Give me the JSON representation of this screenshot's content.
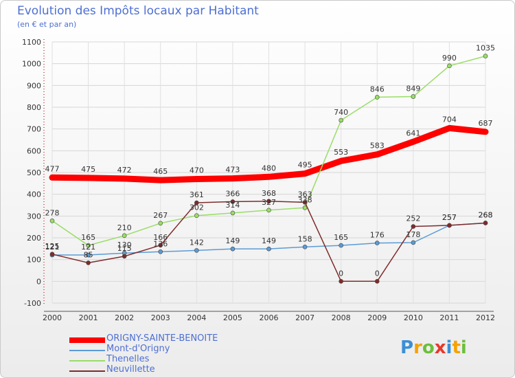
{
  "title": "Evolution des Impôts locaux par Habitant",
  "subtitle": "(en € et par an)",
  "chart_data": {
    "type": "line",
    "title": "Evolution des Impôts locaux par Habitant",
    "ylabel": "(en € et par an)",
    "x": [
      2000,
      2001,
      2002,
      2003,
      2004,
      2005,
      2006,
      2007,
      2008,
      2009,
      2010,
      2011,
      2012
    ],
    "ylim": [
      -100,
      1100
    ],
    "yticks": [
      -100,
      0,
      100,
      200,
      300,
      400,
      500,
      600,
      700,
      800,
      900,
      1000,
      1100
    ],
    "series": [
      {
        "name": "ORIGNY-SAINTE-BENOITE",
        "color": "#ff0000",
        "values": [
          477,
          475,
          472,
          465,
          470,
          473,
          480,
          495,
          553,
          583,
          641,
          704,
          687
        ]
      },
      {
        "name": "Mont-d'Origny",
        "color": "#5b9bd5",
        "values": [
          121,
          121,
          130,
          136,
          142,
          149,
          149,
          158,
          165,
          176,
          178,
          257,
          268
        ]
      },
      {
        "name": "Thenelles",
        "color": "#99dd66",
        "values": [
          278,
          165,
          210,
          267,
          302,
          314,
          327,
          338,
          740,
          846,
          849,
          990,
          1035
        ]
      },
      {
        "name": "Neuvillette",
        "color": "#7f2b2b",
        "values": [
          125,
          85,
          115,
          166,
          361,
          366,
          368,
          363,
          0,
          0,
          252,
          257,
          268
        ]
      }
    ]
  },
  "legend": [
    {
      "label": "ORIGNY-SAINTE-BENOITE"
    },
    {
      "label": "Mont-d'Origny"
    },
    {
      "label": "Thenelles"
    },
    {
      "label": "Neuvillette"
    }
  ],
  "logo": {
    "text": "Proxiti"
  }
}
